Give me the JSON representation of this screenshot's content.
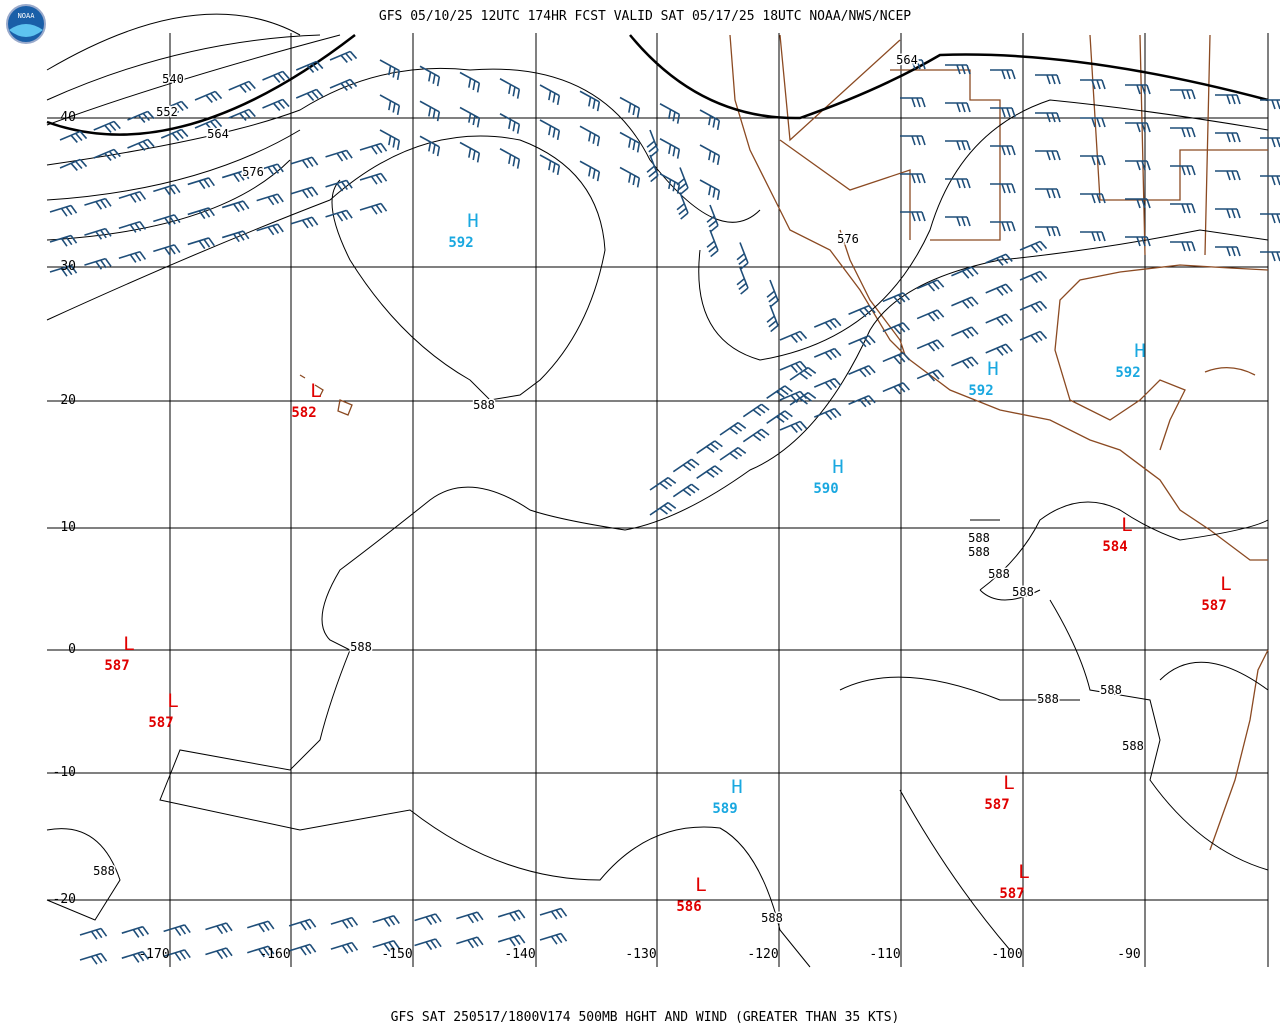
{
  "header": {
    "title": "GFS 05/10/25 12UTC 174HR FCST VALID SAT 05/17/25 18UTC NOAA/NWS/NCEP",
    "logo": "NOAA"
  },
  "footer": {
    "caption": "GFS SAT 250517/1800V174 500MB HGHT AND WIND (GREATER THAN 35 KTS)"
  },
  "grid": {
    "lat_labels": [
      "40",
      "30",
      "20",
      "10",
      "0",
      "-10",
      "-20"
    ],
    "lon_labels": [
      "-170",
      "-160",
      "-150",
      "-140",
      "-130",
      "-120",
      "-110",
      "-100",
      "-90"
    ]
  },
  "contour_labels": [
    "540",
    "552",
    "564",
    "576",
    "564",
    "576",
    "588",
    "588",
    "588",
    "588",
    "588",
    "588",
    "588",
    "588",
    "588",
    "588",
    "588"
  ],
  "centers": [
    {
      "kind": "H",
      "value": "592"
    },
    {
      "kind": "H",
      "value": "592"
    },
    {
      "kind": "H",
      "value": "592"
    },
    {
      "kind": "H",
      "value": "590"
    },
    {
      "kind": "H",
      "value": "589"
    },
    {
      "kind": "L",
      "value": "582"
    },
    {
      "kind": "L",
      "value": "584"
    },
    {
      "kind": "L",
      "value": "587"
    },
    {
      "kind": "L",
      "value": "587"
    },
    {
      "kind": "L",
      "value": "587"
    },
    {
      "kind": "L",
      "value": "587"
    },
    {
      "kind": "L",
      "value": "587"
    },
    {
      "kind": "L",
      "value": "586"
    }
  ]
}
